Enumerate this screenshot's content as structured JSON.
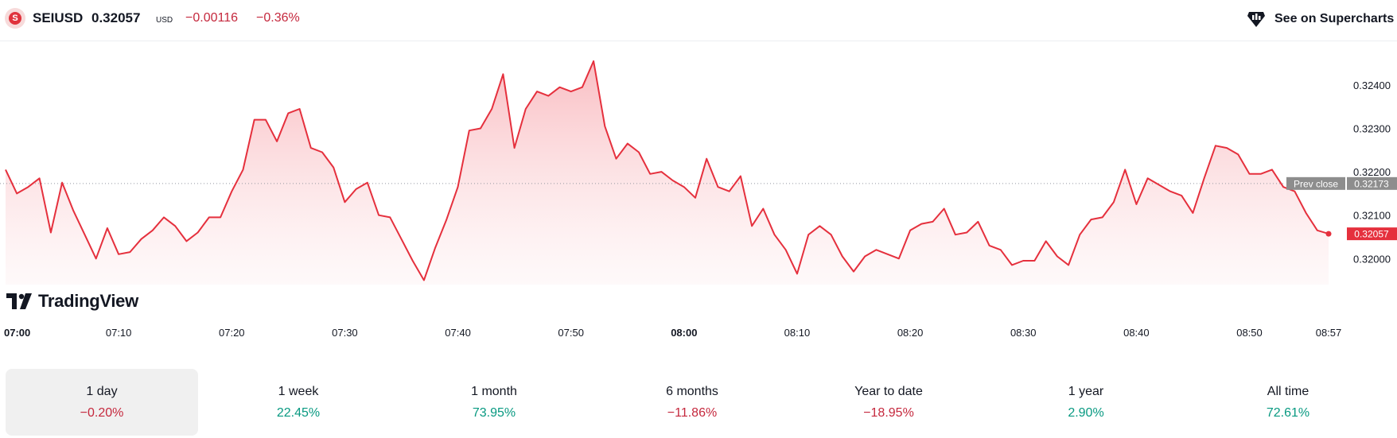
{
  "header": {
    "symbol": "SEIUSD",
    "price": "0.32057",
    "currency": "USD",
    "change": "−0.00116",
    "change_percent": "−0.36%",
    "supercharts_label": "See on Supercharts",
    "icon_letter": "S"
  },
  "brand": {
    "logo_text": "TradingView"
  },
  "colors": {
    "line": "#e5303d",
    "negative": "#c5283d",
    "positive": "#089981",
    "prev_close_badge": "#8d8d8d",
    "last_price_badge": "#e5303d"
  },
  "chart_data": {
    "type": "area",
    "x": [
      "07:00",
      "07:01",
      "07:02",
      "07:03",
      "07:04",
      "07:05",
      "07:06",
      "07:07",
      "07:08",
      "07:09",
      "07:10",
      "07:11",
      "07:12",
      "07:13",
      "07:14",
      "07:15",
      "07:16",
      "07:17",
      "07:18",
      "07:19",
      "07:20",
      "07:21",
      "07:22",
      "07:23",
      "07:24",
      "07:25",
      "07:26",
      "07:27",
      "07:28",
      "07:29",
      "07:30",
      "07:31",
      "07:32",
      "07:33",
      "07:34",
      "07:35",
      "07:36",
      "07:37",
      "07:38",
      "07:39",
      "07:40",
      "07:41",
      "07:42",
      "07:43",
      "07:44",
      "07:45",
      "07:46",
      "07:47",
      "07:48",
      "07:49",
      "07:50",
      "07:51",
      "07:52",
      "07:53",
      "07:54",
      "07:55",
      "07:56",
      "07:57",
      "07:58",
      "07:59",
      "08:00",
      "08:01",
      "08:02",
      "08:03",
      "08:04",
      "08:05",
      "08:06",
      "08:07",
      "08:08",
      "08:09",
      "08:10",
      "08:11",
      "08:12",
      "08:13",
      "08:14",
      "08:15",
      "08:16",
      "08:17",
      "08:18",
      "08:19",
      "08:20",
      "08:21",
      "08:22",
      "08:23",
      "08:24",
      "08:25",
      "08:26",
      "08:27",
      "08:28",
      "08:29",
      "08:30",
      "08:31",
      "08:32",
      "08:33",
      "08:34",
      "08:35",
      "08:36",
      "08:37",
      "08:38",
      "08:39",
      "08:40",
      "08:41",
      "08:42",
      "08:43",
      "08:44",
      "08:45",
      "08:46",
      "08:47",
      "08:48",
      "08:49",
      "08:50",
      "08:51",
      "08:52",
      "08:53",
      "08:54",
      "08:55",
      "08:56",
      "08:57"
    ],
    "y": [
      0.32205,
      0.3215,
      0.32165,
      0.32185,
      0.3206,
      0.32175,
      0.3211,
      0.32055,
      0.32,
      0.3207,
      0.3201,
      0.32015,
      0.32045,
      0.32065,
      0.32095,
      0.32075,
      0.3204,
      0.3206,
      0.32095,
      0.32095,
      0.32155,
      0.32205,
      0.3232,
      0.3232,
      0.3227,
      0.32335,
      0.32345,
      0.32255,
      0.32245,
      0.3221,
      0.3213,
      0.3216,
      0.32175,
      0.321,
      0.32095,
      0.32045,
      0.31995,
      0.3195,
      0.32025,
      0.3209,
      0.32165,
      0.32295,
      0.323,
      0.32345,
      0.32425,
      0.32255,
      0.32345,
      0.32385,
      0.32375,
      0.32395,
      0.32385,
      0.32395,
      0.32455,
      0.32305,
      0.3223,
      0.32265,
      0.32245,
      0.32195,
      0.322,
      0.3218,
      0.32165,
      0.3214,
      0.3223,
      0.32165,
      0.32155,
      0.3219,
      0.32075,
      0.32115,
      0.32055,
      0.3202,
      0.31965,
      0.32055,
      0.32075,
      0.32055,
      0.32005,
      0.3197,
      0.32005,
      0.3202,
      0.3201,
      0.32,
      0.32065,
      0.3208,
      0.32085,
      0.32115,
      0.32055,
      0.3206,
      0.32085,
      0.3203,
      0.3202,
      0.31985,
      0.31995,
      0.31995,
      0.3204,
      0.32005,
      0.31985,
      0.32055,
      0.3209,
      0.32095,
      0.3213,
      0.32205,
      0.32125,
      0.32185,
      0.3217,
      0.32155,
      0.32145,
      0.32105,
      0.32185,
      0.3226,
      0.32255,
      0.3224,
      0.32195,
      0.32195,
      0.32205,
      0.32165,
      0.32155,
      0.32105,
      0.32065,
      0.32057
    ],
    "prev_close": 0.32173,
    "prev_close_label": "Prev close",
    "prev_close_value": "0.32173",
    "last_value": "0.32057",
    "ylim": [
      0.3194,
      0.32475
    ],
    "y_ticks": [
      {
        "value": 0.324,
        "label": "0.32400"
      },
      {
        "value": 0.323,
        "label": "0.32300"
      },
      {
        "value": 0.322,
        "label": "0.32200"
      },
      {
        "value": 0.321,
        "label": "0.32100"
      },
      {
        "value": 0.32,
        "label": "0.32000"
      }
    ],
    "x_ticks": [
      {
        "index": 0,
        "label": "07:00",
        "bold": true
      },
      {
        "index": 10,
        "label": "07:10",
        "bold": false
      },
      {
        "index": 20,
        "label": "07:20",
        "bold": false
      },
      {
        "index": 30,
        "label": "07:30",
        "bold": false
      },
      {
        "index": 40,
        "label": "07:40",
        "bold": false
      },
      {
        "index": 50,
        "label": "07:50",
        "bold": false
      },
      {
        "index": 60,
        "label": "08:00",
        "bold": true
      },
      {
        "index": 70,
        "label": "08:10",
        "bold": false
      },
      {
        "index": 80,
        "label": "08:20",
        "bold": false
      },
      {
        "index": 90,
        "label": "08:30",
        "bold": false
      },
      {
        "index": 100,
        "label": "08:40",
        "bold": false
      },
      {
        "index": 110,
        "label": "08:50",
        "bold": false
      },
      {
        "index": 117,
        "label": "08:57",
        "bold": false
      }
    ],
    "grid": false
  },
  "periods": [
    {
      "label": "1 day",
      "value": "−0.20%",
      "sign": "neg",
      "active": true
    },
    {
      "label": "1 week",
      "value": "22.45%",
      "sign": "pos",
      "active": false
    },
    {
      "label": "1 month",
      "value": "73.95%",
      "sign": "pos",
      "active": false
    },
    {
      "label": "6 months",
      "value": "−11.86%",
      "sign": "neg",
      "active": false
    },
    {
      "label": "Year to date",
      "value": "−18.95%",
      "sign": "neg",
      "active": false
    },
    {
      "label": "1 year",
      "value": "2.90%",
      "sign": "pos",
      "active": false
    },
    {
      "label": "All time",
      "value": "72.61%",
      "sign": "pos",
      "active": false
    }
  ]
}
